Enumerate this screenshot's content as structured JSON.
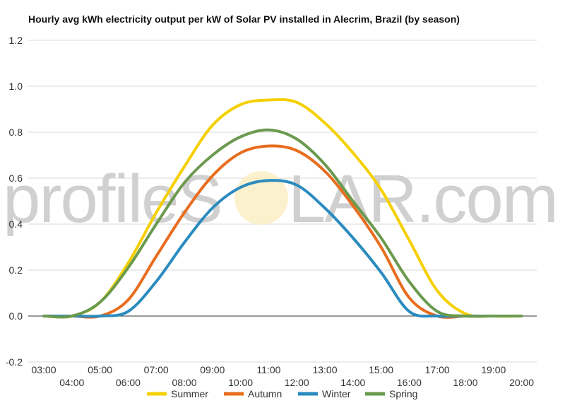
{
  "title": "Hourly avg kWh electricity output per kW of Solar PV installed in Alecrim, Brazil (by season)",
  "watermark": {
    "left": "profileS",
    "right": "LAR.com"
  },
  "chart_data": {
    "type": "line",
    "ylim": [
      -0.2,
      1.2
    ],
    "y_ticks": [
      1.2,
      1.0,
      0.8,
      0.6,
      0.4,
      0.2,
      0.0,
      -0.2
    ],
    "y_tick_labels": [
      "1.2",
      "1.0",
      "0.8",
      "0.6",
      "0.4",
      "0.2",
      "0.0",
      "-0.2"
    ],
    "x": [
      "03:00",
      "04:00",
      "05:00",
      "06:00",
      "07:00",
      "08:00",
      "09:00",
      "10:00",
      "11:00",
      "12:00",
      "13:00",
      "14:00",
      "15:00",
      "16:00",
      "17:00",
      "18:00",
      "19:00",
      "20:00"
    ],
    "grid": true,
    "legend_position": "bottom",
    "series": [
      {
        "name": "Summer",
        "color": "#f5d000",
        "values": [
          0.0,
          0.0,
          0.06,
          0.23,
          0.45,
          0.65,
          0.83,
          0.92,
          0.94,
          0.93,
          0.84,
          0.71,
          0.55,
          0.33,
          0.11,
          0.01,
          0.0,
          0.0
        ]
      },
      {
        "name": "Autumn",
        "color": "#e86d1f",
        "values": [
          0.0,
          0.0,
          0.0,
          0.07,
          0.26,
          0.45,
          0.61,
          0.71,
          0.74,
          0.72,
          0.63,
          0.48,
          0.3,
          0.08,
          0.0,
          0.0,
          0.0,
          0.0
        ]
      },
      {
        "name": "Winter",
        "color": "#2a8bbf",
        "values": [
          0.0,
          0.0,
          0.0,
          0.02,
          0.15,
          0.32,
          0.47,
          0.56,
          0.59,
          0.57,
          0.47,
          0.34,
          0.19,
          0.02,
          0.0,
          0.0,
          0.0,
          0.0
        ]
      },
      {
        "name": "Spring",
        "color": "#6b9a4f",
        "values": [
          0.0,
          0.0,
          0.06,
          0.21,
          0.4,
          0.58,
          0.7,
          0.78,
          0.81,
          0.77,
          0.66,
          0.5,
          0.34,
          0.15,
          0.02,
          0.0,
          0.0,
          0.0
        ]
      }
    ]
  }
}
